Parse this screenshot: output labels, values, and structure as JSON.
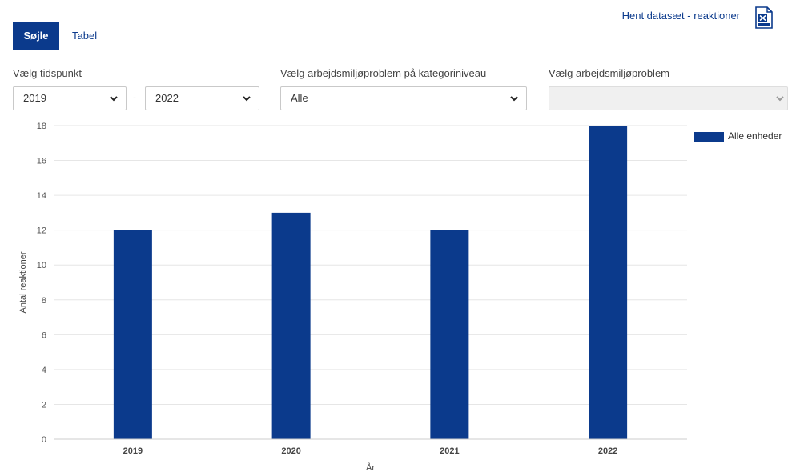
{
  "tabs": [
    {
      "label": "Søjle",
      "active": true
    },
    {
      "label": "Tabel",
      "active": false
    }
  ],
  "download": {
    "label": "Hent datasæt - reaktioner",
    "icon": "excel-file-icon"
  },
  "filters": {
    "period_label": "Vælg tidspunkt",
    "from_value": "2019",
    "separator": "-",
    "to_value": "2022",
    "category_label": "Vælg arbejdsmiljøproblem på kategoriniveau",
    "category_value": "Alle",
    "problem_label": "Vælg arbejdsmiljøproblem",
    "problem_value": ""
  },
  "colors": {
    "accent": "#0b3a8c",
    "grid": "#e6e6e6"
  },
  "chart_data": {
    "type": "bar",
    "categories": [
      "2019",
      "2020",
      "2021",
      "2022"
    ],
    "series": [
      {
        "name": "Alle enheder",
        "values": [
          12,
          13,
          12,
          18
        ]
      }
    ],
    "xlabel": "År",
    "ylabel": "Antal reaktioner",
    "ylim": [
      0,
      18
    ],
    "yticks": [
      0,
      2,
      4,
      6,
      8,
      10,
      12,
      14,
      16,
      18
    ],
    "grid": true,
    "legend": "right"
  }
}
